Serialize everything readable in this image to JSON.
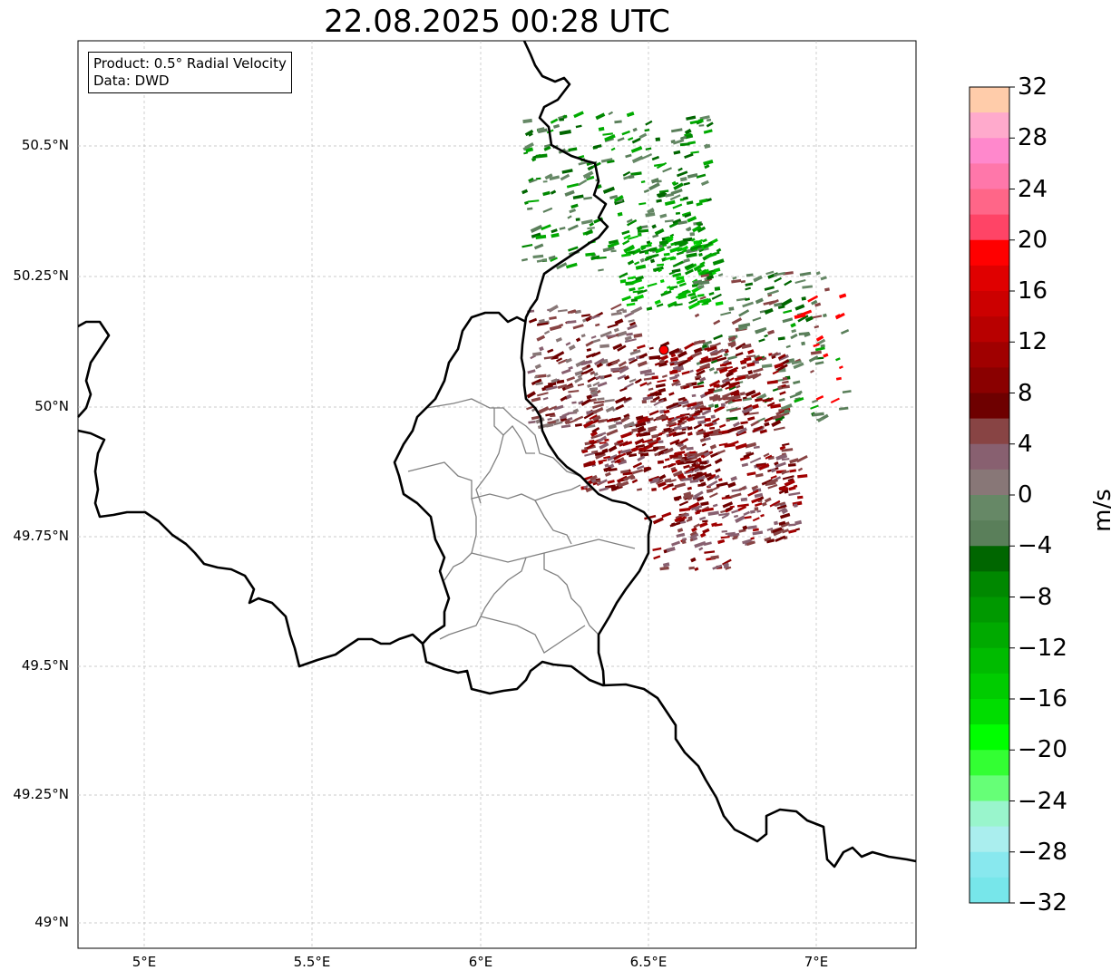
{
  "title": "22.08.2025 00:28 UTC",
  "info": {
    "product": "Product: 0.5° Radial Velocity",
    "source": "Data: DWD"
  },
  "lat_ticks": [
    "50.5°N",
    "50.25°N",
    "50°N",
    "49.75°N",
    "49.5°N",
    "49.25°N",
    "49°N"
  ],
  "lon_ticks": [
    "5°E",
    "5.5°E",
    "6°E",
    "6.5°E",
    "7°E"
  ],
  "colorbar": {
    "unit": "m/s",
    "ticks": [
      "32",
      "28",
      "24",
      "20",
      "16",
      "12",
      "8",
      "4",
      "0",
      "−4",
      "−8",
      "−12",
      "−16",
      "−20",
      "−24",
      "−28",
      "−32"
    ],
    "colors": [
      "#ffccaa",
      "#ffaacc",
      "#ff88cc",
      "#ff77aa",
      "#ff6688",
      "#ff4466",
      "#ff0000",
      "#e00000",
      "#cc0000",
      "#b80000",
      "#a00000",
      "#8a0000",
      "#6e0000",
      "#884444",
      "#886070",
      "#887777",
      "#668866",
      "#5a7f5a",
      "#006600",
      "#008800",
      "#009900",
      "#00aa00",
      "#00bb00",
      "#00cc00",
      "#00dd00",
      "#00ff00",
      "#33ff33",
      "#66ff77",
      "#99f5cc",
      "#aaeeee",
      "#88e8ee",
      "#77e6ea"
    ]
  },
  "radar_site_color": "#ff0000"
}
